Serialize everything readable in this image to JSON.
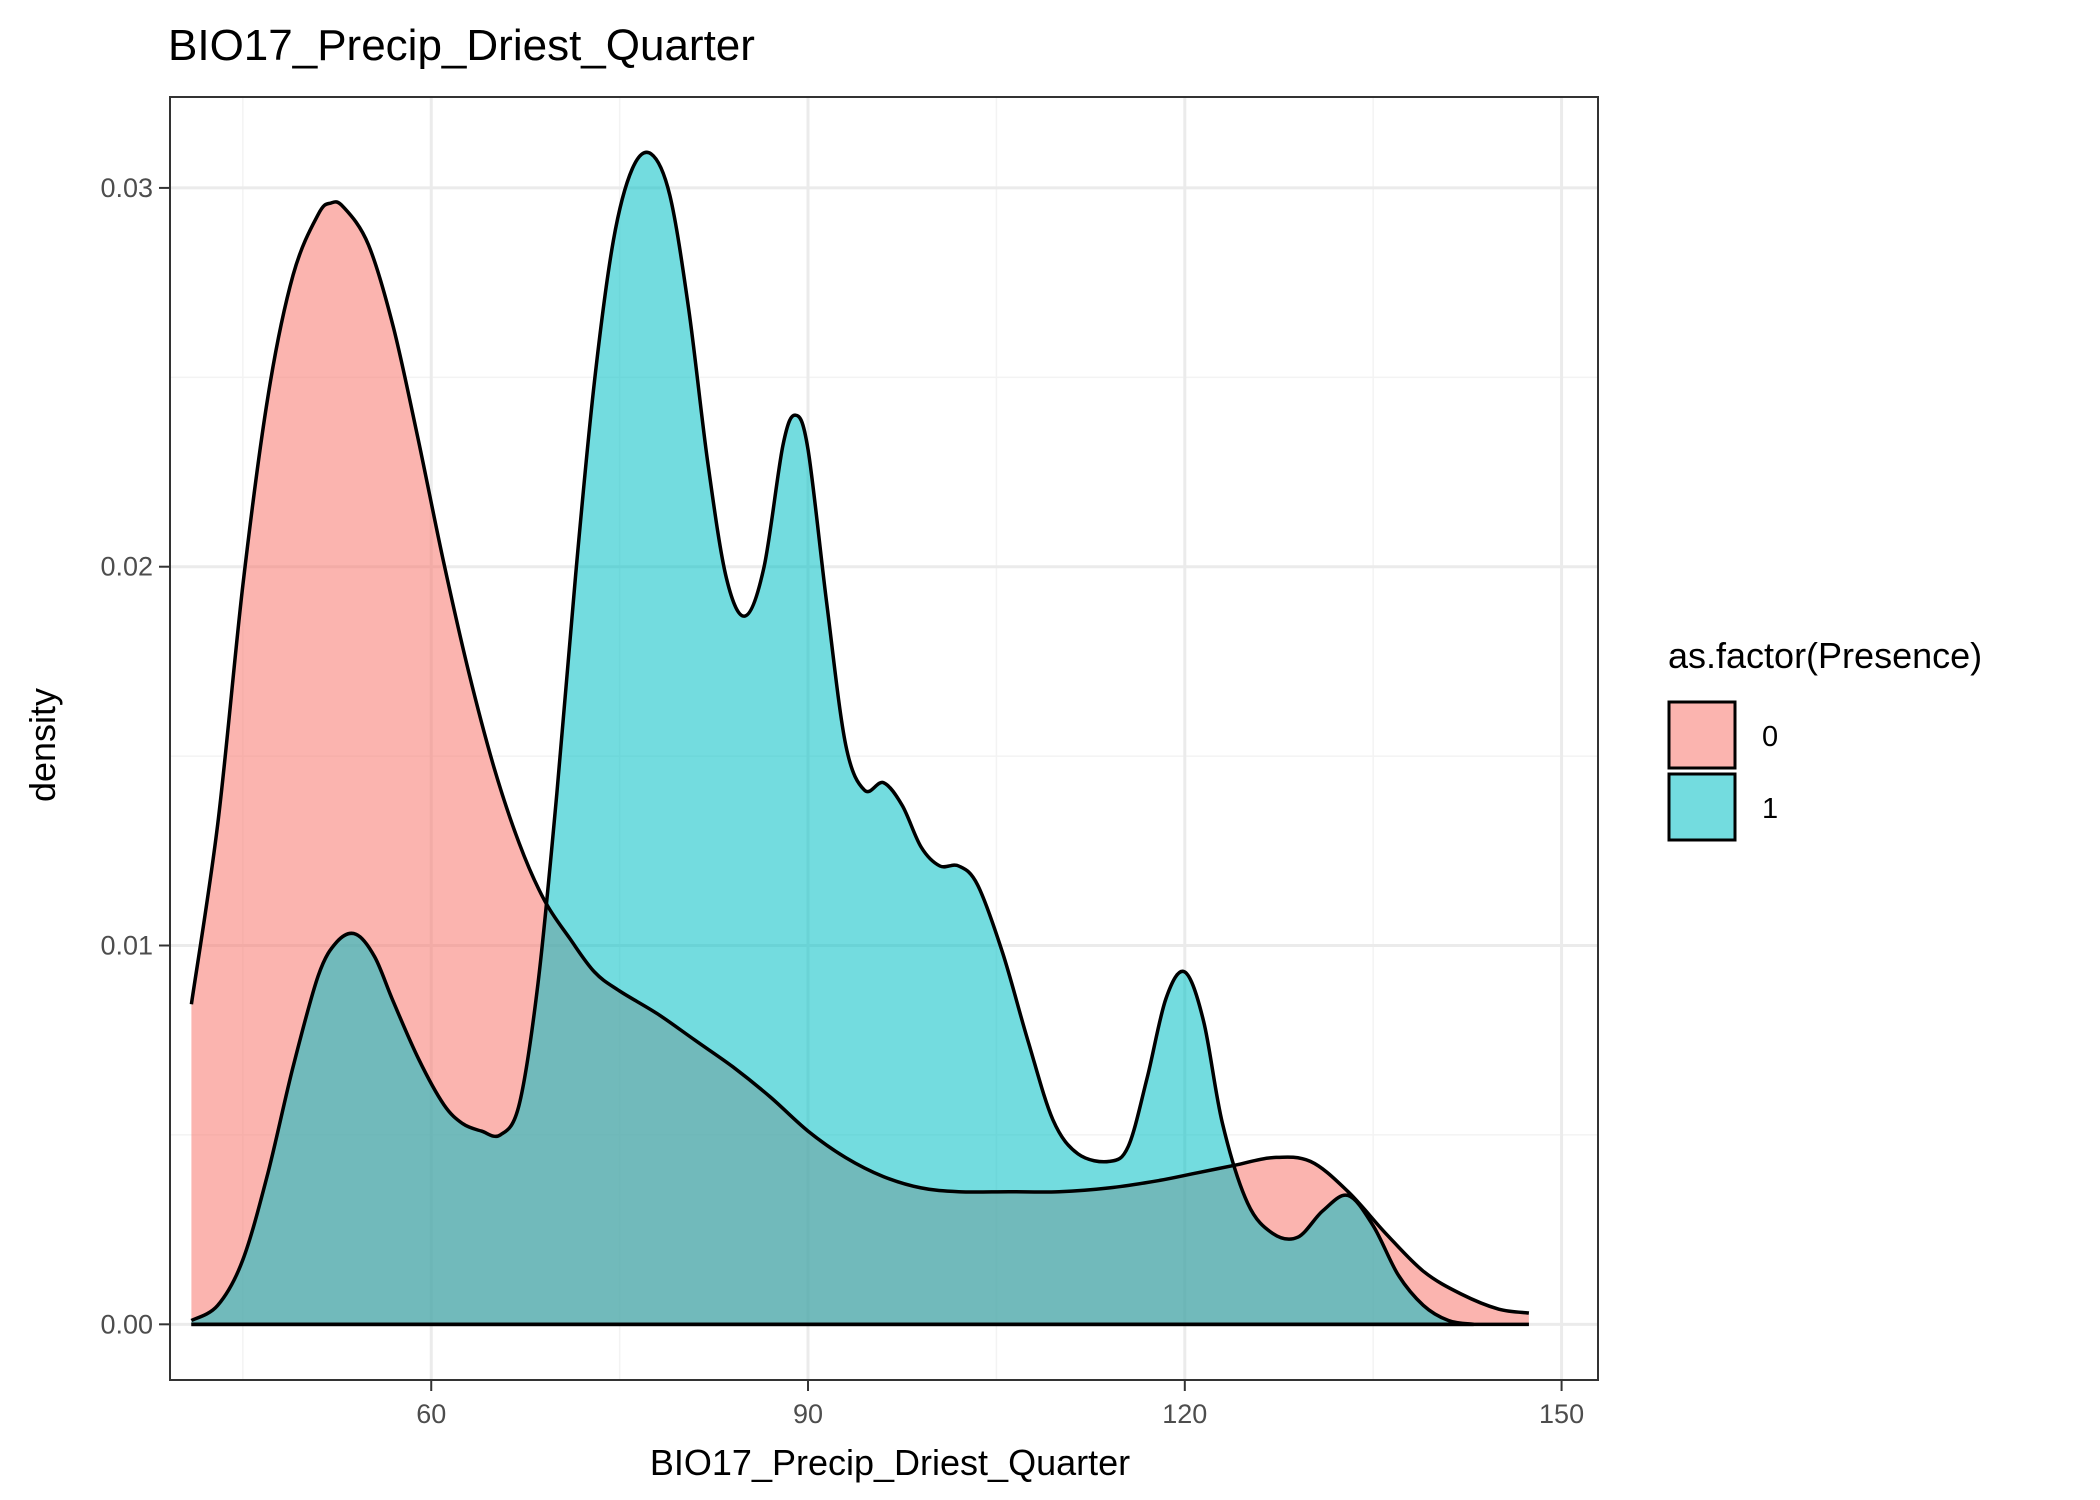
{
  "chart_data": {
    "type": "area",
    "title": "BIO17_Precip_Driest_Quarter",
    "xlabel": "BIO17_Precip_Driest_Quarter",
    "ylabel": "density",
    "xlim": [
      39.2,
      152.9
    ],
    "ylim": [
      -0.00147,
      0.0324
    ],
    "x_ticks": [
      60,
      90,
      120,
      150
    ],
    "x_tick_labels": [
      "60",
      "90",
      "120",
      "150"
    ],
    "x_minor_ticks": [
      45,
      75,
      105,
      135
    ],
    "y_ticks": [
      0.0,
      0.01,
      0.02,
      0.03
    ],
    "y_tick_labels": [
      "0.00",
      "0.01",
      "0.02",
      "0.03"
    ],
    "y_minor_ticks": [
      0.005,
      0.015,
      0.025
    ],
    "grid": true,
    "legend": {
      "title": "as.factor(Presence)",
      "position": "right",
      "entries": [
        "0",
        "1"
      ]
    },
    "series": [
      {
        "name": "0",
        "color": "#F8766D",
        "points": [
          [
            40.9,
            0.00845
          ],
          [
            43.0,
            0.0132
          ],
          [
            45.0,
            0.0195
          ],
          [
            47.0,
            0.0245
          ],
          [
            49.0,
            0.0277
          ],
          [
            51.0,
            0.0293
          ],
          [
            52.0,
            0.0296
          ],
          [
            53.0,
            0.0295
          ],
          [
            55.0,
            0.0285
          ],
          [
            57.0,
            0.0263
          ],
          [
            59.0,
            0.0233
          ],
          [
            61.0,
            0.0201
          ],
          [
            63.0,
            0.0172
          ],
          [
            65.0,
            0.0147
          ],
          [
            67.0,
            0.0127
          ],
          [
            69.0,
            0.0112
          ],
          [
            71.0,
            0.0102
          ],
          [
            73.0,
            0.0093
          ],
          [
            75.0,
            0.0088
          ],
          [
            78.0,
            0.0082
          ],
          [
            81.0,
            0.0075
          ],
          [
            84.0,
            0.0068
          ],
          [
            87.0,
            0.006
          ],
          [
            90.0,
            0.0051
          ],
          [
            93.0,
            0.0044
          ],
          [
            96.0,
            0.0039
          ],
          [
            99.0,
            0.0036
          ],
          [
            102.0,
            0.0035
          ],
          [
            106.0,
            0.0035
          ],
          [
            110.0,
            0.0035
          ],
          [
            114.0,
            0.0036
          ],
          [
            118.0,
            0.0038
          ],
          [
            121.0,
            0.004
          ],
          [
            124.0,
            0.0042
          ],
          [
            127.0,
            0.0044
          ],
          [
            130.0,
            0.0043
          ],
          [
            133.0,
            0.0035
          ],
          [
            136.0,
            0.0024
          ],
          [
            139.0,
            0.0014
          ],
          [
            142.0,
            0.0008
          ],
          [
            145.0,
            0.0004
          ],
          [
            147.4,
            0.0003
          ]
        ]
      },
      {
        "name": "1",
        "color": "#00BFC4",
        "points": [
          [
            40.9,
            0.0001
          ],
          [
            43.0,
            0.0005
          ],
          [
            45.0,
            0.0017
          ],
          [
            47.0,
            0.004
          ],
          [
            49.0,
            0.0068
          ],
          [
            51.0,
            0.0092
          ],
          [
            52.5,
            0.0101
          ],
          [
            54.0,
            0.0103
          ],
          [
            55.5,
            0.0097
          ],
          [
            57.0,
            0.0085
          ],
          [
            59.0,
            0.007
          ],
          [
            61.0,
            0.0058
          ],
          [
            62.5,
            0.0053
          ],
          [
            64.0,
            0.0051
          ],
          [
            65.5,
            0.005
          ],
          [
            67.0,
            0.0058
          ],
          [
            68.5,
            0.009
          ],
          [
            70.0,
            0.014
          ],
          [
            71.5,
            0.0198
          ],
          [
            73.0,
            0.0249
          ],
          [
            74.5,
            0.0286
          ],
          [
            76.0,
            0.0305
          ],
          [
            77.5,
            0.0309
          ],
          [
            79.0,
            0.0298
          ],
          [
            80.5,
            0.0268
          ],
          [
            82.0,
            0.0228
          ],
          [
            83.5,
            0.0197
          ],
          [
            85.0,
            0.0187
          ],
          [
            86.5,
            0.02
          ],
          [
            88.0,
            0.0232
          ],
          [
            89.0,
            0.024
          ],
          [
            90.0,
            0.0231
          ],
          [
            91.5,
            0.019
          ],
          [
            93.0,
            0.0153
          ],
          [
            94.5,
            0.0141
          ],
          [
            96.0,
            0.0143
          ],
          [
            97.5,
            0.0137
          ],
          [
            99.0,
            0.0126
          ],
          [
            100.5,
            0.0121
          ],
          [
            102.0,
            0.0121
          ],
          [
            103.5,
            0.0116
          ],
          [
            105.5,
            0.0098
          ],
          [
            107.5,
            0.0075
          ],
          [
            109.5,
            0.0054
          ],
          [
            111.5,
            0.0045
          ],
          [
            114.0,
            0.0043
          ],
          [
            115.5,
            0.0047
          ],
          [
            117.0,
            0.0065
          ],
          [
            118.5,
            0.0086
          ],
          [
            120.0,
            0.0093
          ],
          [
            121.5,
            0.008
          ],
          [
            123.0,
            0.0053
          ],
          [
            125.0,
            0.0032
          ],
          [
            127.0,
            0.0024
          ],
          [
            129.0,
            0.0023
          ],
          [
            131.0,
            0.003
          ],
          [
            133.0,
            0.0034
          ],
          [
            135.0,
            0.0026
          ],
          [
            137.0,
            0.0013
          ],
          [
            139.0,
            0.0005
          ],
          [
            141.0,
            0.0001
          ],
          [
            143.0,
            0.0
          ]
        ]
      }
    ]
  },
  "style": {
    "panel_border": "#333333",
    "grid_major": "#ebebeb",
    "grid_minor": "#f3f3f3",
    "fill_opacity": 0.55,
    "line_color": "#000000"
  }
}
